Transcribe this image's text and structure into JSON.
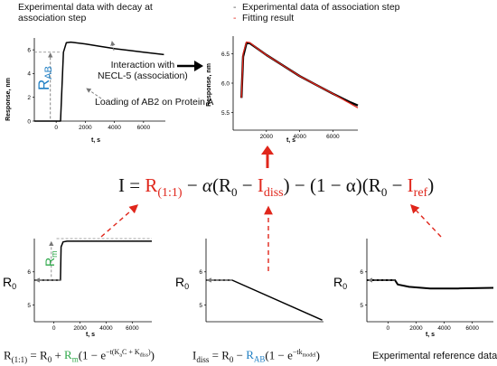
{
  "captions": {
    "top_left": [
      "Experimental data with decay at",
      "association step"
    ],
    "legend_dash": "Experimental data of association step",
    "legend_fit": "Fitting result",
    "ref_data": "Experimental reference data"
  },
  "annotations": {
    "interaction": [
      "Interaction with",
      "NECL-5 (association)"
    ],
    "loading": "Loading of AB2 on Protein A",
    "r_ab_label": "R",
    "r_ab_sub": "AB",
    "r_m_label": "R",
    "r_m_sub": "m",
    "r0_label": "R",
    "r0_sub": "0"
  },
  "axes": {
    "ylabel": "Response, nm",
    "xlabel": "t, s",
    "xticks": [
      "0",
      "2000",
      "4000",
      "6000"
    ],
    "yticks_tl": [
      "6",
      "4",
      "2",
      "0"
    ],
    "yticks_tr": [
      "6.5",
      "6.0",
      "5.5"
    ],
    "yticks_bot": [
      "6",
      "5"
    ]
  },
  "main_equation": {
    "I": "I",
    "eq": "=",
    "R": "R",
    "sub11": "(1:1)",
    "minus1": "−",
    "alpha1": "α",
    "open1": "(",
    "R0": "R",
    "r0sub": "0",
    "minus2": "−",
    "Idiss": "I",
    "idisssub": "diss",
    "close1": ")",
    "minus3": "−",
    "oneminus": "(1 − α)",
    "open2": "(",
    "R0b": "R",
    "r0subb": "0",
    "minus4": "−",
    "Iref": "I",
    "irefsub": "ref",
    "close2": ")"
  },
  "formula_left": {
    "lhs": "R",
    "lhs_sub": "(1:1)",
    "eq": " = ",
    "r0": "R",
    "r0_sub": "0",
    "plus": " + ",
    "rm": "R",
    "rm_sub": "m",
    "rest": "(1 − e",
    "exp": "−t(K",
    "exp_sub1": "a",
    "exp_mid": "C + K",
    "exp_sub2": "diss",
    "exp_end": ")",
    "close": ")"
  },
  "formula_mid": {
    "lhs": "I",
    "lhs_sub": "diss",
    "eq": " = ",
    "r0": "R",
    "r0_sub": "0",
    "minus": " − ",
    "rab": "R",
    "rab_sub": "AB",
    "rest": "(1 − e",
    "exp": "−tk",
    "exp_sub": "model",
    "close": ")"
  },
  "colors": {
    "red": "#e0261b",
    "blue": "#1f7fc4",
    "green": "#2ea84a",
    "black": "#111111",
    "grey": "#888888"
  },
  "chart_data": [
    {
      "type": "line",
      "title": "Experimental data with decay at association step",
      "xlabel": "t, s",
      "ylabel": "Response, nm",
      "xlim": [
        -1500,
        7500
      ],
      "ylim": [
        0,
        7
      ],
      "x": [
        -1500,
        300,
        500,
        700,
        1000,
        2000,
        3000,
        4000,
        5000,
        6000,
        7400
      ],
      "series": [
        {
          "values": [
            0,
            0,
            5.8,
            6.6,
            6.65,
            6.5,
            6.3,
            6.1,
            5.95,
            5.8,
            5.6
          ]
        }
      ]
    },
    {
      "type": "line",
      "xlabel": "t, s",
      "ylabel": "Response, nm",
      "xlim": [
        0,
        7500
      ],
      "ylim": [
        5.2,
        6.8
      ],
      "x": [
        500,
        600,
        800,
        1000,
        1500,
        2000,
        3000,
        4000,
        5000,
        6000,
        7000,
        7500
      ],
      "series": [
        {
          "name": "Experimental data of association step",
          "values": [
            5.75,
            6.45,
            6.68,
            6.68,
            6.58,
            6.48,
            6.3,
            6.12,
            5.97,
            5.82,
            5.68,
            5.62
          ]
        },
        {
          "name": "Fitting result",
          "values": [
            5.75,
            6.5,
            6.7,
            6.69,
            6.58,
            6.48,
            6.3,
            6.12,
            5.97,
            5.82,
            5.66,
            5.58
          ]
        }
      ]
    },
    {
      "type": "line",
      "xlabel": "t, s",
      "xlim": [
        -1500,
        7500
      ],
      "ylim": [
        4.5,
        7
      ],
      "x": [
        -1500,
        500,
        550,
        700,
        1000,
        2000,
        4000,
        7500
      ],
      "series": [
        {
          "values": [
            5.75,
            5.75,
            6.75,
            6.9,
            6.92,
            6.92,
            6.92,
            6.92
          ]
        }
      ]
    },
    {
      "type": "line",
      "xlabel": "t, s",
      "xlim": [
        -1500,
        7500
      ],
      "ylim": [
        4.5,
        7
      ],
      "x": [
        -1500,
        500,
        7400
      ],
      "series": [
        {
          "values": [
            5.75,
            5.75,
            4.55
          ]
        }
      ]
    },
    {
      "type": "line",
      "xlabel": "t, s",
      "xlim": [
        -1500,
        7500
      ],
      "ylim": [
        4.5,
        7
      ],
      "x": [
        -1500,
        500,
        700,
        1500,
        3000,
        5000,
        7500
      ],
      "series": [
        {
          "values": [
            5.75,
            5.75,
            5.62,
            5.55,
            5.5,
            5.5,
            5.52
          ]
        }
      ]
    }
  ]
}
